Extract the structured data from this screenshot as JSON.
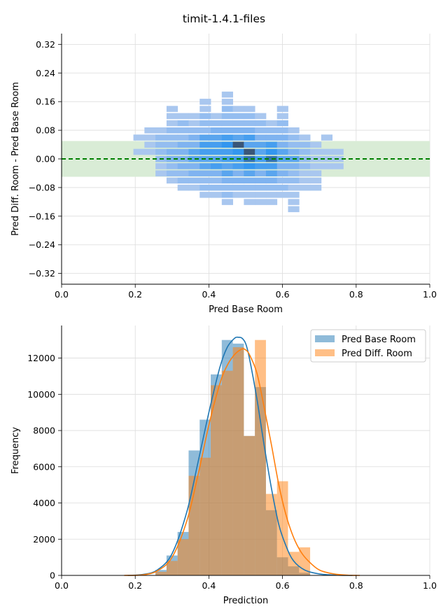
{
  "figure_title": "timit-1.4.1-files",
  "chart_data": [
    {
      "type": "heatmap",
      "title": "",
      "xlabel": "Pred Base Room",
      "ylabel": "Pred Diff. Room - Pred Base Room",
      "xlim": [
        0,
        1.0
      ],
      "ylim": [
        -0.35,
        0.35
      ],
      "xticks": [
        "0.0",
        "0.2",
        "0.4",
        "0.6",
        "0.8",
        "1.0"
      ],
      "yticks": [
        "0.32",
        "0.24",
        "0.16",
        "0.08",
        "0.00",
        "−0.08",
        "−0.16",
        "−0.24",
        "−0.32"
      ],
      "grid": true,
      "reference_line": {
        "y": 0.0,
        "style": "dashed",
        "color": "#008000"
      },
      "band": {
        "y_min": -0.05,
        "y_max": 0.05,
        "color": "#d9ecd6"
      },
      "bin_width": [
        0.03,
        0.016
      ],
      "colors": {
        "low": "#a9c7ef",
        "high": "#3a5678"
      },
      "cells": [
        [
          0.21,
          0.06,
          1
        ],
        [
          0.21,
          0.02,
          1
        ],
        [
          0.24,
          0.08,
          1
        ],
        [
          0.24,
          0.06,
          1
        ],
        [
          0.24,
          0.04,
          1
        ],
        [
          0.24,
          0.02,
          1
        ],
        [
          0.27,
          0.08,
          1
        ],
        [
          0.27,
          0.06,
          2
        ],
        [
          0.27,
          0.04,
          2
        ],
        [
          0.27,
          0.02,
          2
        ],
        [
          0.27,
          0.0,
          2
        ],
        [
          0.27,
          -0.02,
          1
        ],
        [
          0.27,
          -0.04,
          1
        ],
        [
          0.3,
          0.14,
          1
        ],
        [
          0.3,
          0.12,
          1
        ],
        [
          0.3,
          0.1,
          1
        ],
        [
          0.3,
          0.08,
          2
        ],
        [
          0.3,
          0.06,
          2
        ],
        [
          0.3,
          0.04,
          2
        ],
        [
          0.3,
          0.02,
          3
        ],
        [
          0.3,
          0.0,
          3
        ],
        [
          0.3,
          -0.02,
          2
        ],
        [
          0.3,
          -0.04,
          2
        ],
        [
          0.3,
          -0.06,
          1
        ],
        [
          0.33,
          0.12,
          1
        ],
        [
          0.33,
          0.1,
          2
        ],
        [
          0.33,
          0.08,
          2
        ],
        [
          0.33,
          0.06,
          2
        ],
        [
          0.33,
          0.04,
          3
        ],
        [
          0.33,
          0.02,
          3
        ],
        [
          0.33,
          0.0,
          3
        ],
        [
          0.33,
          -0.02,
          3
        ],
        [
          0.33,
          -0.04,
          2
        ],
        [
          0.33,
          -0.06,
          2
        ],
        [
          0.33,
          -0.08,
          1
        ],
        [
          0.36,
          0.12,
          1
        ],
        [
          0.36,
          0.1,
          1
        ],
        [
          0.36,
          0.08,
          2
        ],
        [
          0.36,
          0.06,
          3
        ],
        [
          0.36,
          0.04,
          3
        ],
        [
          0.36,
          0.02,
          4
        ],
        [
          0.36,
          0.0,
          4
        ],
        [
          0.36,
          -0.02,
          3
        ],
        [
          0.36,
          -0.04,
          3
        ],
        [
          0.36,
          -0.06,
          2
        ],
        [
          0.36,
          -0.08,
          1
        ],
        [
          0.39,
          0.16,
          1
        ],
        [
          0.39,
          0.14,
          1
        ],
        [
          0.39,
          0.12,
          2
        ],
        [
          0.39,
          0.1,
          2
        ],
        [
          0.39,
          0.08,
          2
        ],
        [
          0.39,
          0.06,
          4
        ],
        [
          0.39,
          0.04,
          5
        ],
        [
          0.39,
          0.02,
          5
        ],
        [
          0.39,
          0.0,
          4
        ],
        [
          0.39,
          -0.02,
          4
        ],
        [
          0.39,
          -0.04,
          3
        ],
        [
          0.39,
          -0.06,
          2
        ],
        [
          0.39,
          -0.08,
          2
        ],
        [
          0.39,
          -0.1,
          1
        ],
        [
          0.42,
          0.12,
          1
        ],
        [
          0.42,
          0.1,
          2
        ],
        [
          0.42,
          0.08,
          3
        ],
        [
          0.42,
          0.06,
          4
        ],
        [
          0.42,
          0.04,
          5
        ],
        [
          0.42,
          0.02,
          5
        ],
        [
          0.42,
          0.0,
          4
        ],
        [
          0.42,
          -0.02,
          5
        ],
        [
          0.42,
          -0.04,
          3
        ],
        [
          0.42,
          -0.06,
          2
        ],
        [
          0.42,
          -0.08,
          2
        ],
        [
          0.42,
          -0.1,
          1
        ],
        [
          0.45,
          0.18,
          1
        ],
        [
          0.45,
          0.16,
          1
        ],
        [
          0.45,
          0.14,
          2
        ],
        [
          0.45,
          0.12,
          2
        ],
        [
          0.45,
          0.1,
          2
        ],
        [
          0.45,
          0.08,
          3
        ],
        [
          0.45,
          0.06,
          5
        ],
        [
          0.45,
          0.04,
          6
        ],
        [
          0.45,
          0.02,
          5
        ],
        [
          0.45,
          0.0,
          5
        ],
        [
          0.45,
          -0.02,
          4
        ],
        [
          0.45,
          -0.04,
          4
        ],
        [
          0.45,
          -0.06,
          3
        ],
        [
          0.45,
          -0.08,
          2
        ],
        [
          0.45,
          -0.1,
          2
        ],
        [
          0.45,
          -0.12,
          1
        ],
        [
          0.48,
          0.14,
          1
        ],
        [
          0.48,
          0.12,
          2
        ],
        [
          0.48,
          0.1,
          2
        ],
        [
          0.48,
          0.08,
          3
        ],
        [
          0.48,
          0.06,
          4
        ],
        [
          0.48,
          0.04,
          9
        ],
        [
          0.48,
          0.02,
          6
        ],
        [
          0.48,
          0.0,
          5
        ],
        [
          0.48,
          -0.02,
          5
        ],
        [
          0.48,
          -0.04,
          3
        ],
        [
          0.48,
          -0.06,
          3
        ],
        [
          0.48,
          -0.08,
          2
        ],
        [
          0.48,
          -0.1,
          1
        ],
        [
          0.51,
          0.14,
          1
        ],
        [
          0.51,
          0.12,
          2
        ],
        [
          0.51,
          0.1,
          2
        ],
        [
          0.51,
          0.08,
          3
        ],
        [
          0.51,
          0.06,
          5
        ],
        [
          0.51,
          0.04,
          4
        ],
        [
          0.51,
          0.02,
          9
        ],
        [
          0.51,
          0.0,
          8
        ],
        [
          0.51,
          -0.02,
          6
        ],
        [
          0.51,
          -0.04,
          4
        ],
        [
          0.51,
          -0.06,
          3
        ],
        [
          0.51,
          -0.08,
          2
        ],
        [
          0.51,
          -0.1,
          1
        ],
        [
          0.51,
          -0.12,
          1
        ],
        [
          0.54,
          0.12,
          1
        ],
        [
          0.54,
          0.1,
          2
        ],
        [
          0.54,
          0.08,
          2
        ],
        [
          0.54,
          0.06,
          3
        ],
        [
          0.54,
          0.04,
          4
        ],
        [
          0.54,
          0.02,
          4
        ],
        [
          0.54,
          0.0,
          5
        ],
        [
          0.54,
          -0.02,
          5
        ],
        [
          0.54,
          -0.04,
          3
        ],
        [
          0.54,
          -0.06,
          3
        ],
        [
          0.54,
          -0.08,
          2
        ],
        [
          0.54,
          -0.1,
          1
        ],
        [
          0.54,
          -0.12,
          1
        ],
        [
          0.57,
          0.1,
          1
        ],
        [
          0.57,
          0.08,
          2
        ],
        [
          0.57,
          0.06,
          3
        ],
        [
          0.57,
          0.04,
          5
        ],
        [
          0.57,
          0.02,
          6
        ],
        [
          0.57,
          0.0,
          8
        ],
        [
          0.57,
          -0.02,
          5
        ],
        [
          0.57,
          -0.04,
          4
        ],
        [
          0.57,
          -0.06,
          3
        ],
        [
          0.57,
          -0.08,
          2
        ],
        [
          0.57,
          -0.1,
          1
        ],
        [
          0.57,
          -0.12,
          1
        ],
        [
          0.6,
          0.14,
          1
        ],
        [
          0.6,
          0.12,
          1
        ],
        [
          0.6,
          0.1,
          2
        ],
        [
          0.6,
          0.08,
          2
        ],
        [
          0.6,
          0.06,
          3
        ],
        [
          0.6,
          0.04,
          3
        ],
        [
          0.6,
          0.02,
          4
        ],
        [
          0.6,
          0.0,
          4
        ],
        [
          0.6,
          -0.02,
          3
        ],
        [
          0.6,
          -0.04,
          3
        ],
        [
          0.6,
          -0.06,
          2
        ],
        [
          0.6,
          -0.08,
          2
        ],
        [
          0.6,
          -0.1,
          1
        ],
        [
          0.63,
          0.08,
          1
        ],
        [
          0.63,
          0.06,
          2
        ],
        [
          0.63,
          0.04,
          2
        ],
        [
          0.63,
          0.02,
          3
        ],
        [
          0.63,
          0.0,
          4
        ],
        [
          0.63,
          -0.02,
          3
        ],
        [
          0.63,
          -0.04,
          2
        ],
        [
          0.63,
          -0.06,
          2
        ],
        [
          0.63,
          -0.08,
          1
        ],
        [
          0.63,
          -0.1,
          1
        ],
        [
          0.63,
          -0.12,
          1
        ],
        [
          0.63,
          -0.14,
          1
        ],
        [
          0.66,
          0.06,
          1
        ],
        [
          0.66,
          0.04,
          2
        ],
        [
          0.66,
          0.02,
          2
        ],
        [
          0.66,
          0.0,
          2
        ],
        [
          0.66,
          -0.02,
          2
        ],
        [
          0.66,
          -0.04,
          1
        ],
        [
          0.66,
          -0.06,
          1
        ],
        [
          0.66,
          -0.08,
          1
        ],
        [
          0.69,
          0.04,
          1
        ],
        [
          0.69,
          0.02,
          1
        ],
        [
          0.69,
          0.0,
          1
        ],
        [
          0.69,
          -0.02,
          1
        ],
        [
          0.69,
          -0.04,
          1
        ],
        [
          0.69,
          -0.06,
          1
        ],
        [
          0.69,
          -0.08,
          1
        ],
        [
          0.72,
          0.06,
          1
        ],
        [
          0.72,
          0.02,
          1
        ],
        [
          0.72,
          0.0,
          1
        ],
        [
          0.72,
          -0.02,
          1
        ],
        [
          0.75,
          0.02,
          1
        ],
        [
          0.75,
          0.0,
          1
        ],
        [
          0.75,
          -0.02,
          1
        ]
      ]
    },
    {
      "type": "bar",
      "title": "",
      "xlabel": "Prediction",
      "ylabel": "Frequency",
      "xlim": [
        0,
        1.0
      ],
      "ylim": [
        0,
        13800
      ],
      "xticks": [
        "0.0",
        "0.2",
        "0.4",
        "0.6",
        "0.8",
        "1.0"
      ],
      "yticks": [
        "0",
        "2000",
        "4000",
        "6000",
        "8000",
        "10000",
        "12000"
      ],
      "grid": true,
      "legend_position": "top-right",
      "bin_width": 0.03,
      "categories": [
        0.27,
        0.3,
        0.33,
        0.36,
        0.39,
        0.42,
        0.45,
        0.48,
        0.51,
        0.54,
        0.57,
        0.6,
        0.63,
        0.66,
        0.69
      ],
      "series": [
        {
          "name": "Pred Base Room",
          "color": "#1f77b4",
          "values": [
            300,
            1100,
            2400,
            6900,
            8600,
            11100,
            13000,
            12800,
            7700,
            10400,
            3600,
            1000,
            500,
            150,
            0
          ]
        },
        {
          "name": "Pred Diff. Room",
          "color": "#ff7f0e",
          "values": [
            200,
            800,
            2000,
            5500,
            6500,
            10500,
            11300,
            12600,
            7700,
            13000,
            4500,
            5200,
            1300,
            1550,
            0
          ]
        }
      ],
      "kde": [
        {
          "name": "Pred Base Room",
          "x": [
            0.18,
            0.22,
            0.26,
            0.3,
            0.34,
            0.37,
            0.4,
            0.43,
            0.45,
            0.47,
            0.48,
            0.49,
            0.5,
            0.51,
            0.53,
            0.55,
            0.57,
            0.59,
            0.61,
            0.63,
            0.66,
            0.7,
            0.75,
            0.79
          ],
          "y": [
            0,
            50,
            300,
            1200,
            3500,
            6200,
            9000,
            11500,
            12600,
            13100,
            13150,
            13100,
            12800,
            12000,
            9800,
            7200,
            4800,
            2800,
            1600,
            800,
            300,
            80,
            10,
            0
          ]
        },
        {
          "name": "Pred Diff. Room",
          "x": [
            0.17,
            0.22,
            0.26,
            0.3,
            0.34,
            0.37,
            0.4,
            0.43,
            0.45,
            0.47,
            0.49,
            0.5,
            0.51,
            0.53,
            0.55,
            0.57,
            0.59,
            0.61,
            0.63,
            0.65,
            0.67,
            0.7,
            0.74,
            0.78,
            0.81
          ],
          "y": [
            0,
            30,
            250,
            1000,
            3000,
            5500,
            8300,
            10600,
            11600,
            12200,
            12500,
            12450,
            12200,
            11200,
            9300,
            7200,
            5000,
            3300,
            2100,
            1300,
            800,
            300,
            80,
            10,
            0
          ]
        }
      ]
    }
  ]
}
